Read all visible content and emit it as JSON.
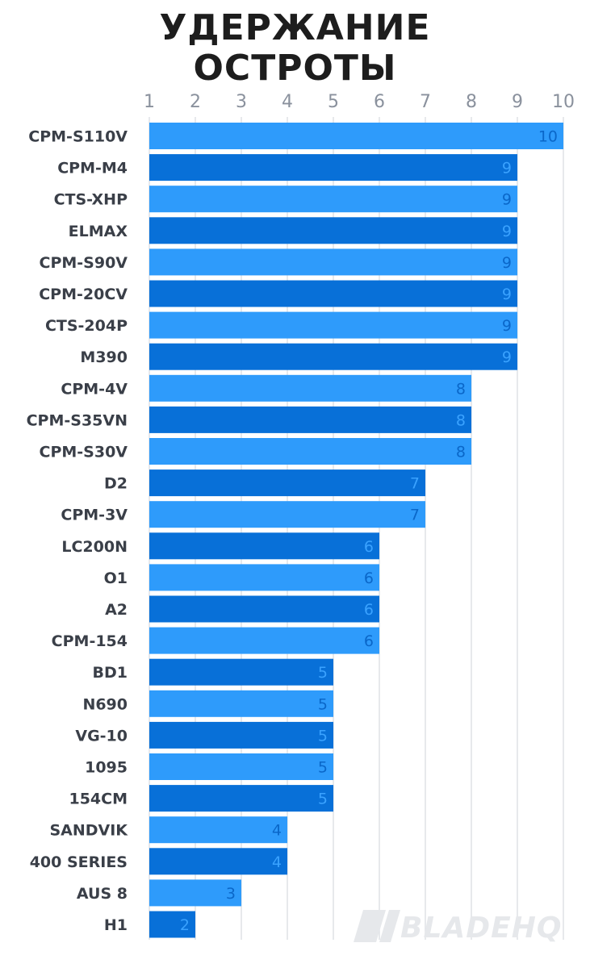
{
  "chart_data": {
    "type": "bar",
    "orientation": "horizontal",
    "title": "УДЕРЖАНИЕ ОСТРОТЫ",
    "title_lines": [
      "УДЕРЖАНИЕ",
      "ОСТРОТЫ"
    ],
    "xlim": [
      1,
      10
    ],
    "x_ticks": [
      1,
      2,
      3,
      4,
      5,
      6,
      7,
      8,
      9,
      10
    ],
    "tick_labels": [
      "1",
      "2",
      "3",
      "4",
      "5",
      "6",
      "7",
      "8",
      "9",
      "10"
    ],
    "xlabel": "",
    "ylabel": "",
    "grid": true,
    "axis_position": "top",
    "categories": [
      "CPM-S110V",
      "CPM-M4",
      "CTS-XHP",
      "ELMAX",
      "CPM-S90V",
      "CPM-20CV",
      "CTS-204P",
      "M390",
      "CPM-4V",
      "CPM-S35VN",
      "CPM-S30V",
      "D2",
      "CPM-3V",
      "LC200N",
      "O1",
      "A2",
      "CPM-154",
      "BD1",
      "N690",
      "VG-10",
      "1095",
      "154CM",
      "SANDVIK",
      "400 SERIES",
      "AUS 8",
      "H1"
    ],
    "values": [
      10,
      9,
      9,
      9,
      9,
      9,
      9,
      9,
      8,
      8,
      8,
      7,
      7,
      6,
      6,
      6,
      6,
      5,
      5,
      5,
      5,
      5,
      4,
      4,
      3,
      2
    ],
    "colors": {
      "bar_light": "#2e9bfb",
      "bar_dark": "#0870d8",
      "label_on_light": "#0a67c9",
      "label_on_dark": "#3aa2ff",
      "grid": "#dfe2e6"
    },
    "watermark": "BLADEHQ"
  }
}
